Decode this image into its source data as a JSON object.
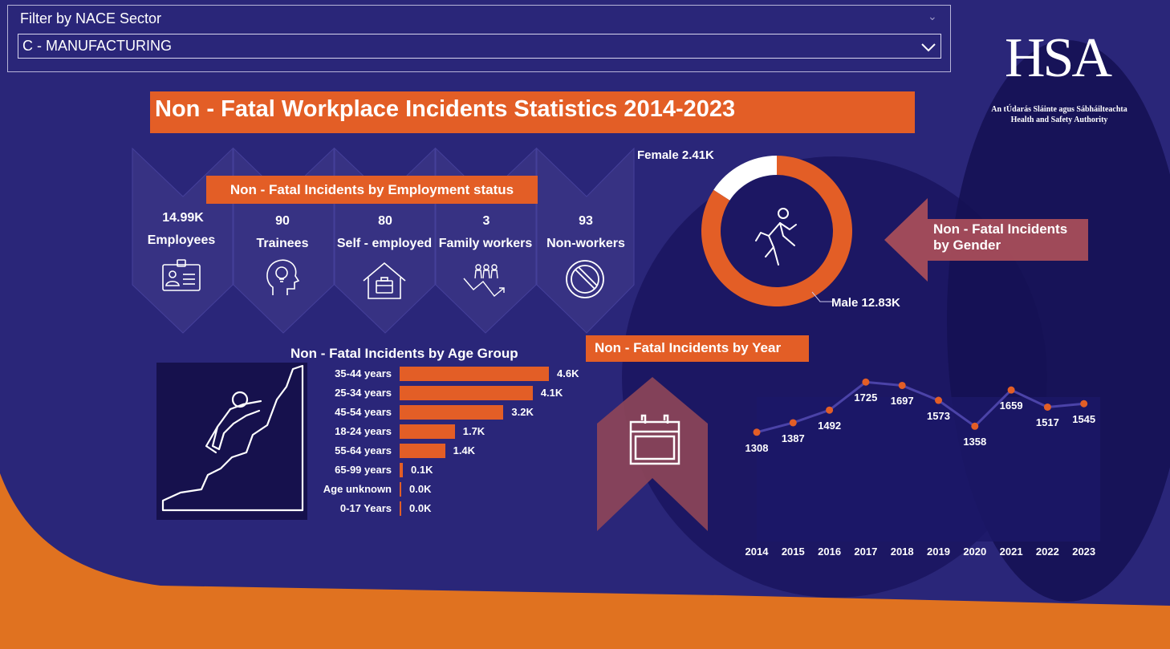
{
  "filter": {
    "label": "Filter by NACE Sector",
    "selected": "C - MANUFACTURING"
  },
  "logo": {
    "text": "HSA",
    "subtitle_irish": "An tÚdarás Sláinte agus Sábháilteachta",
    "subtitle_english": "Health and Safety Authority"
  },
  "title": "Non - Fatal Workplace Incidents Statistics 2014-2023",
  "colors": {
    "accent": "#e35e26",
    "background": "#1e1a5c",
    "panel": "#2e2a73",
    "orange_floor": "#e07220"
  },
  "employment": {
    "header": "Non - Fatal Incidents by Employment status",
    "items": [
      {
        "value": "14.99K",
        "label": "Employees",
        "icon": "id-badge-icon"
      },
      {
        "value": "90",
        "label": "Trainees",
        "icon": "lightbulb-head-icon"
      },
      {
        "value": "80",
        "label": "Self - employed",
        "icon": "house-briefcase-icon"
      },
      {
        "value": "3",
        "label": "Family workers",
        "icon": "family-growth-icon"
      },
      {
        "value": "93",
        "label": "Non-workers",
        "icon": "prohibited-icon"
      }
    ]
  },
  "gender": {
    "title_line1": "Non - Fatal Incidents",
    "title_line2": "by Gender",
    "female_label": "Female 2.41K",
    "male_label": "Male 12.83K"
  },
  "age": {
    "title": "Non - Fatal Incidents by Age Group"
  },
  "year": {
    "header": "Non - Fatal Incidents by Year"
  },
  "chart_data": [
    {
      "type": "pie",
      "title": "Non - Fatal Incidents by Gender",
      "categories": [
        "Female",
        "Male"
      ],
      "values": [
        2.41,
        12.83
      ],
      "units": "K"
    },
    {
      "type": "bar",
      "title": "Non - Fatal Incidents by Age Group",
      "orientation": "horizontal",
      "categories": [
        "35-44 years",
        "25-34 years",
        "45-54 years",
        "18-24 years",
        "55-64 years",
        "65-99 years",
        "Age unknown",
        "0-17 Years"
      ],
      "values": [
        4.6,
        4.1,
        3.2,
        1.7,
        1.4,
        0.1,
        0.0,
        0.0
      ],
      "value_labels": [
        "4.6K",
        "4.1K",
        "3.2K",
        "1.7K",
        "1.4K",
        "0.1K",
        "0.0K",
        "0.0K"
      ],
      "xlim": [
        0,
        4.6
      ]
    },
    {
      "type": "line",
      "title": "Non - Fatal Incidents by Year",
      "x": [
        "2014",
        "2015",
        "2016",
        "2017",
        "2018",
        "2019",
        "2020",
        "2021",
        "2022",
        "2023"
      ],
      "values": [
        1308,
        1387,
        1492,
        1725,
        1697,
        1573,
        1358,
        1659,
        1517,
        1545
      ],
      "ylim": [
        1200,
        1800
      ]
    }
  ]
}
